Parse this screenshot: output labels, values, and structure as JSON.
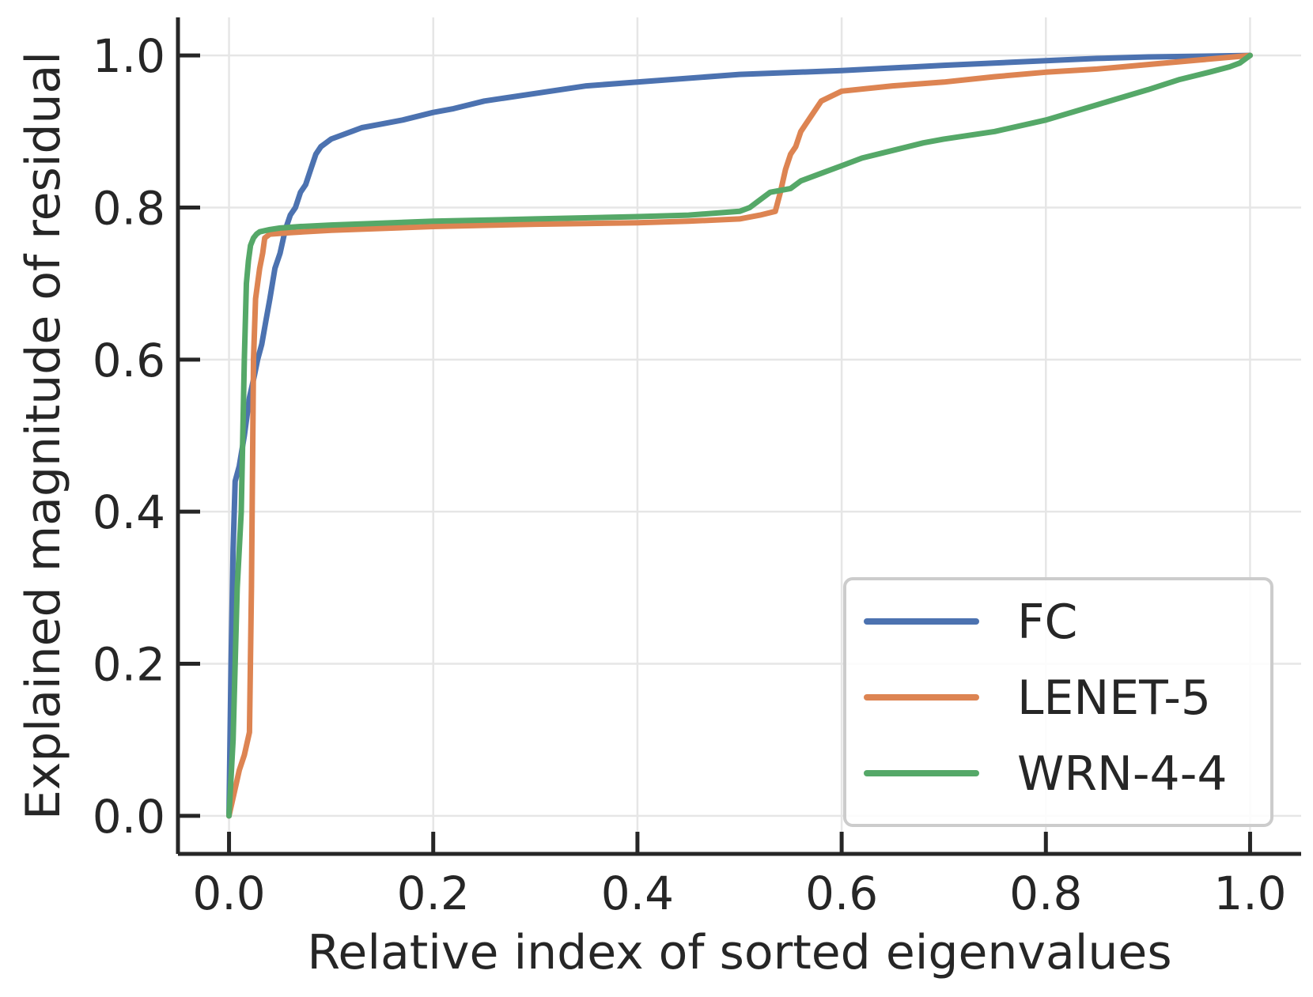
{
  "chart_data": {
    "type": "line",
    "title": "",
    "xlabel": "Relative index of sorted eigenvalues",
    "ylabel": "Explained magnitude of residual",
    "xlim": [
      -0.05,
      1.05
    ],
    "ylim": [
      -0.05,
      1.05
    ],
    "xticks": [
      0.0,
      0.2,
      0.4,
      0.6,
      0.8,
      1.0
    ],
    "yticks": [
      0.0,
      0.2,
      0.4,
      0.6,
      0.8,
      1.0
    ],
    "xtick_labels": [
      "0.0",
      "0.2",
      "0.4",
      "0.6",
      "0.8",
      "1.0"
    ],
    "ytick_labels": [
      "0.0",
      "0.2",
      "0.4",
      "0.6",
      "0.8",
      "1.0"
    ],
    "grid": true,
    "legend_position": "lower-right",
    "series": [
      {
        "name": "FC",
        "color": "#4c72b0",
        "x": [
          0.0,
          0.002,
          0.004,
          0.006,
          0.01,
          0.015,
          0.02,
          0.025,
          0.028,
          0.032,
          0.036,
          0.04,
          0.045,
          0.05,
          0.055,
          0.06,
          0.065,
          0.07,
          0.075,
          0.08,
          0.085,
          0.09,
          0.095,
          0.1,
          0.11,
          0.12,
          0.13,
          0.15,
          0.17,
          0.2,
          0.22,
          0.25,
          0.3,
          0.35,
          0.4,
          0.5,
          0.6,
          0.7,
          0.8,
          0.85,
          0.9,
          0.95,
          1.0
        ],
        "y": [
          0.0,
          0.2,
          0.35,
          0.44,
          0.46,
          0.5,
          0.55,
          0.58,
          0.6,
          0.62,
          0.65,
          0.68,
          0.72,
          0.74,
          0.77,
          0.79,
          0.8,
          0.82,
          0.83,
          0.85,
          0.87,
          0.88,
          0.885,
          0.89,
          0.895,
          0.9,
          0.905,
          0.91,
          0.915,
          0.925,
          0.93,
          0.94,
          0.95,
          0.96,
          0.965,
          0.975,
          0.98,
          0.987,
          0.993,
          0.996,
          0.998,
          0.999,
          1.0
        ]
      },
      {
        "name": "LENET-5",
        "color": "#dd8452",
        "x": [
          0.0,
          0.005,
          0.01,
          0.015,
          0.02,
          0.022,
          0.024,
          0.026,
          0.028,
          0.03,
          0.033,
          0.035,
          0.04,
          0.06,
          0.1,
          0.2,
          0.3,
          0.4,
          0.45,
          0.5,
          0.52,
          0.535,
          0.54,
          0.545,
          0.55,
          0.555,
          0.56,
          0.565,
          0.57,
          0.58,
          0.6,
          0.65,
          0.7,
          0.75,
          0.8,
          0.85,
          0.9,
          0.95,
          1.0
        ],
        "y": [
          0.0,
          0.03,
          0.06,
          0.08,
          0.11,
          0.3,
          0.6,
          0.68,
          0.7,
          0.72,
          0.74,
          0.76,
          0.765,
          0.767,
          0.77,
          0.775,
          0.778,
          0.78,
          0.782,
          0.785,
          0.79,
          0.795,
          0.82,
          0.85,
          0.87,
          0.88,
          0.9,
          0.91,
          0.92,
          0.94,
          0.953,
          0.96,
          0.965,
          0.972,
          0.978,
          0.982,
          0.988,
          0.994,
          1.0
        ]
      },
      {
        "name": "WRN-4-4",
        "color": "#55a868",
        "x": [
          0.0,
          0.004,
          0.008,
          0.012,
          0.015,
          0.017,
          0.019,
          0.021,
          0.024,
          0.027,
          0.03,
          0.04,
          0.05,
          0.07,
          0.1,
          0.2,
          0.3,
          0.4,
          0.45,
          0.5,
          0.51,
          0.52,
          0.53,
          0.55,
          0.56,
          0.58,
          0.6,
          0.62,
          0.65,
          0.68,
          0.7,
          0.75,
          0.8,
          0.85,
          0.9,
          0.93,
          0.96,
          0.98,
          0.99,
          1.0
        ],
        "y": [
          0.0,
          0.1,
          0.3,
          0.4,
          0.6,
          0.7,
          0.73,
          0.75,
          0.76,
          0.765,
          0.768,
          0.771,
          0.773,
          0.775,
          0.777,
          0.782,
          0.785,
          0.788,
          0.79,
          0.795,
          0.8,
          0.81,
          0.82,
          0.825,
          0.835,
          0.845,
          0.855,
          0.865,
          0.875,
          0.885,
          0.89,
          0.9,
          0.915,
          0.935,
          0.955,
          0.968,
          0.978,
          0.985,
          0.99,
          1.0
        ]
      }
    ]
  }
}
